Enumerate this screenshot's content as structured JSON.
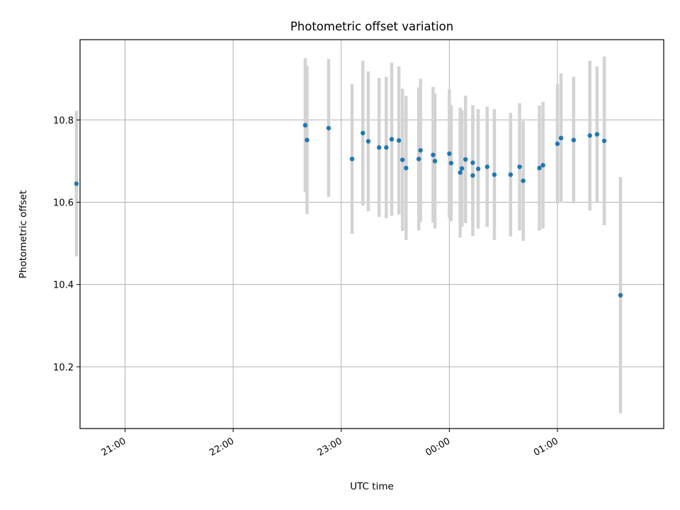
{
  "chart_data": {
    "type": "scatter",
    "title": "Photometric offset variation",
    "xlabel": "UTC time",
    "ylabel": "Photometric offset",
    "x_unit": "UTC time (HH:MM)",
    "xlim": [
      "20:35",
      "01:59"
    ],
    "ylim": [
      10.05,
      10.995
    ],
    "grid": true,
    "x_ticks": [
      "21:00",
      "22:00",
      "23:00",
      "00:00",
      "01:00"
    ],
    "y_ticks": [
      "10.2",
      "10.4",
      "10.6",
      "10.8"
    ],
    "colors": {
      "point": "#1f77b4",
      "errorbar": "#d3d3d3",
      "grid": "#b0b0b0"
    },
    "points": [
      {
        "x": "20:33",
        "y": 10.645,
        "lo": 10.468,
        "hi": 10.822
      },
      {
        "x": "22:40",
        "y": 10.787,
        "lo": 10.624,
        "hi": 10.95
      },
      {
        "x": "22:41",
        "y": 10.751,
        "lo": 10.571,
        "hi": 10.931
      },
      {
        "x": "22:53",
        "y": 10.78,
        "lo": 10.613,
        "hi": 10.948
      },
      {
        "x": "23:06",
        "y": 10.705,
        "lo": 10.523,
        "hi": 10.887
      },
      {
        "x": "23:12",
        "y": 10.768,
        "lo": 10.592,
        "hi": 10.944
      },
      {
        "x": "23:15",
        "y": 10.748,
        "lo": 10.578,
        "hi": 10.918
      },
      {
        "x": "23:21",
        "y": 10.733,
        "lo": 10.564,
        "hi": 10.902
      },
      {
        "x": "23:25",
        "y": 10.733,
        "lo": 10.561,
        "hi": 10.905
      },
      {
        "x": "23:28",
        "y": 10.753,
        "lo": 10.567,
        "hi": 10.939
      },
      {
        "x": "23:32",
        "y": 10.75,
        "lo": 10.57,
        "hi": 10.93
      },
      {
        "x": "23:34",
        "y": 10.703,
        "lo": 10.53,
        "hi": 10.876
      },
      {
        "x": "23:36",
        "y": 10.683,
        "lo": 10.508,
        "hi": 10.858
      },
      {
        "x": "23:43",
        "y": 10.705,
        "lo": 10.531,
        "hi": 10.879
      },
      {
        "x": "23:44",
        "y": 10.726,
        "lo": 10.552,
        "hi": 10.9
      },
      {
        "x": "23:51",
        "y": 10.715,
        "lo": 10.55,
        "hi": 10.88
      },
      {
        "x": "23:52",
        "y": 10.7,
        "lo": 10.536,
        "hi": 10.864
      },
      {
        "x": "00:00",
        "y": 10.718,
        "lo": 10.562,
        "hi": 10.874
      },
      {
        "x": "00:01",
        "y": 10.695,
        "lo": 10.554,
        "hi": 10.836
      },
      {
        "x": "00:06",
        "y": 10.672,
        "lo": 10.514,
        "hi": 10.83
      },
      {
        "x": "00:07",
        "y": 10.682,
        "lo": 10.54,
        "hi": 10.824
      },
      {
        "x": "00:09",
        "y": 10.704,
        "lo": 10.549,
        "hi": 10.859
      },
      {
        "x": "00:13",
        "y": 10.665,
        "lo": 10.518,
        "hi": 10.812
      },
      {
        "x": "00:13",
        "y": 10.696,
        "lo": 10.556,
        "hi": 10.836
      },
      {
        "x": "00:16",
        "y": 10.681,
        "lo": 10.536,
        "hi": 10.826
      },
      {
        "x": "00:21",
        "y": 10.686,
        "lo": 10.54,
        "hi": 10.832
      },
      {
        "x": "00:25",
        "y": 10.667,
        "lo": 10.508,
        "hi": 10.826
      },
      {
        "x": "00:34",
        "y": 10.667,
        "lo": 10.517,
        "hi": 10.817
      },
      {
        "x": "00:39",
        "y": 10.686,
        "lo": 10.531,
        "hi": 10.841
      },
      {
        "x": "00:41",
        "y": 10.652,
        "lo": 10.506,
        "hi": 10.798
      },
      {
        "x": "00:50",
        "y": 10.683,
        "lo": 10.531,
        "hi": 10.835
      },
      {
        "x": "00:52",
        "y": 10.69,
        "lo": 10.536,
        "hi": 10.844
      },
      {
        "x": "01:00",
        "y": 10.742,
        "lo": 10.597,
        "hi": 10.887
      },
      {
        "x": "01:02",
        "y": 10.756,
        "lo": 10.599,
        "hi": 10.913
      },
      {
        "x": "01:09",
        "y": 10.751,
        "lo": 10.597,
        "hi": 10.905
      },
      {
        "x": "01:18",
        "y": 10.762,
        "lo": 10.58,
        "hi": 10.944
      },
      {
        "x": "01:22",
        "y": 10.765,
        "lo": 10.6,
        "hi": 10.93
      },
      {
        "x": "01:26",
        "y": 10.749,
        "lo": 10.544,
        "hi": 10.954
      },
      {
        "x": "01:35",
        "y": 10.374,
        "lo": 10.087,
        "hi": 10.661
      }
    ]
  }
}
